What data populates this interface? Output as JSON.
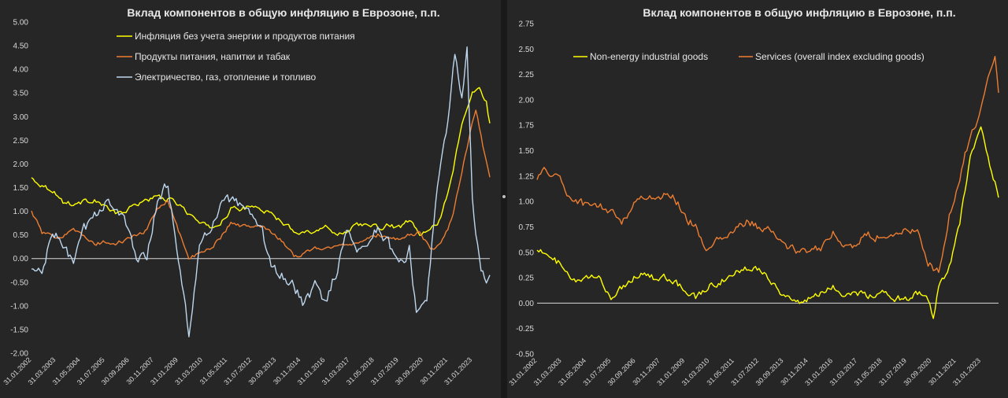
{
  "chart_data": [
    {
      "type": "line",
      "title": "Вклад компонентов в общую инфляцию в Еврозоне, п.п.",
      "xlabel": "",
      "ylabel": "",
      "ylim": [
        -2.0,
        5.0
      ],
      "ytick_labels": [
        "-2.00",
        "-1.50",
        "-1.00",
        "-0.50",
        "0.00",
        "0.50",
        "1.00",
        "1.50",
        "2.00",
        "2.50",
        "3.00",
        "3.50",
        "4.00",
        "4.50",
        "5.00"
      ],
      "x_tick_labels": [
        "31.01.2002",
        "31.03.2003",
        "31.05.2004",
        "31.07.2005",
        "30.09.2006",
        "30.11.2007",
        "31.01.2009",
        "31.03.2010",
        "31.05.2011",
        "31.07.2012",
        "30.09.2013",
        "30.11.2014",
        "31.01.2016",
        "31.03.2017",
        "31.05.2018",
        "31.07.2019",
        "30.09.2020",
        "30.11.2021",
        "31.01.2023"
      ],
      "x_start": "2002-01",
      "x_end": "2023-11",
      "legend_position": "top-left",
      "grid": false,
      "series": [
        {
          "name": "Инфляция без учета энергии и продуктов питания",
          "color": "#ffff00",
          "points": [
            [
              "2002-01",
              1.7
            ],
            [
              "2002-07",
              1.55
            ],
            [
              "2003-01",
              1.45
            ],
            [
              "2003-07",
              1.2
            ],
            [
              "2004-01",
              1.15
            ],
            [
              "2004-07",
              1.2
            ],
            [
              "2005-01",
              1.25
            ],
            [
              "2005-07",
              1.1
            ],
            [
              "2006-01",
              0.95
            ],
            [
              "2006-07",
              1.0
            ],
            [
              "2007-01",
              1.15
            ],
            [
              "2007-07",
              1.25
            ],
            [
              "2008-01",
              1.3
            ],
            [
              "2008-07",
              1.25
            ],
            [
              "2009-01",
              1.15
            ],
            [
              "2009-07",
              0.95
            ],
            [
              "2010-01",
              0.75
            ],
            [
              "2010-07",
              0.65
            ],
            [
              "2011-01",
              0.75
            ],
            [
              "2011-07",
              1.05
            ],
            [
              "2012-01",
              1.05
            ],
            [
              "2012-07",
              1.1
            ],
            [
              "2013-01",
              1.05
            ],
            [
              "2013-07",
              0.9
            ],
            [
              "2014-01",
              0.75
            ],
            [
              "2014-07",
              0.6
            ],
            [
              "2015-01",
              0.55
            ],
            [
              "2015-07",
              0.6
            ],
            [
              "2016-01",
              0.65
            ],
            [
              "2016-07",
              0.55
            ],
            [
              "2017-01",
              0.55
            ],
            [
              "2017-07",
              0.75
            ],
            [
              "2018-01",
              0.7
            ],
            [
              "2018-07",
              0.65
            ],
            [
              "2019-01",
              0.7
            ],
            [
              "2019-07",
              0.65
            ],
            [
              "2020-01",
              0.8
            ],
            [
              "2020-07",
              0.5
            ],
            [
              "2021-01",
              0.6
            ],
            [
              "2021-07",
              0.85
            ],
            [
              "2022-01",
              1.7
            ],
            [
              "2022-07",
              2.8
            ],
            [
              "2023-01",
              3.5
            ],
            [
              "2023-05",
              3.6
            ],
            [
              "2023-09",
              3.3
            ],
            [
              "2023-11",
              2.85
            ]
          ]
        },
        {
          "name": "Продукты питания, напитки и табак",
          "color": "#ed7d31",
          "points": [
            [
              "2002-01",
              1.0
            ],
            [
              "2002-07",
              0.55
            ],
            [
              "2003-01",
              0.45
            ],
            [
              "2003-07",
              0.5
            ],
            [
              "2004-01",
              0.65
            ],
            [
              "2004-07",
              0.45
            ],
            [
              "2005-01",
              0.3
            ],
            [
              "2005-07",
              0.35
            ],
            [
              "2006-01",
              0.3
            ],
            [
              "2006-07",
              0.4
            ],
            [
              "2007-01",
              0.5
            ],
            [
              "2007-07",
              0.6
            ],
            [
              "2008-01",
              1.05
            ],
            [
              "2008-07",
              1.25
            ],
            [
              "2009-01",
              0.6
            ],
            [
              "2009-07",
              0.0
            ],
            [
              "2010-01",
              0.1
            ],
            [
              "2010-07",
              0.2
            ],
            [
              "2011-01",
              0.45
            ],
            [
              "2011-07",
              0.75
            ],
            [
              "2012-01",
              0.7
            ],
            [
              "2012-07",
              0.65
            ],
            [
              "2013-01",
              0.7
            ],
            [
              "2013-07",
              0.55
            ],
            [
              "2014-01",
              0.35
            ],
            [
              "2014-07",
              0.05
            ],
            [
              "2015-01",
              0.1
            ],
            [
              "2015-07",
              0.25
            ],
            [
              "2016-01",
              0.2
            ],
            [
              "2016-07",
              0.25
            ],
            [
              "2017-01",
              0.3
            ],
            [
              "2017-07",
              0.35
            ],
            [
              "2018-01",
              0.4
            ],
            [
              "2018-07",
              0.5
            ],
            [
              "2019-01",
              0.45
            ],
            [
              "2019-07",
              0.4
            ],
            [
              "2020-01",
              0.5
            ],
            [
              "2020-07",
              0.55
            ],
            [
              "2021-01",
              0.2
            ],
            [
              "2021-07",
              0.3
            ],
            [
              "2022-01",
              0.8
            ],
            [
              "2022-07",
              1.8
            ],
            [
              "2023-01",
              2.9
            ],
            [
              "2023-03",
              3.15
            ],
            [
              "2023-07",
              2.4
            ],
            [
              "2023-11",
              1.75
            ]
          ]
        },
        {
          "name": "Электричество, газ, отопление и топливо",
          "color": "#bdd7ee",
          "points": [
            [
              "2002-01",
              -0.25
            ],
            [
              "2002-07",
              -0.3
            ],
            [
              "2003-01",
              0.55
            ],
            [
              "2003-07",
              0.3
            ],
            [
              "2004-01",
              -0.1
            ],
            [
              "2004-07",
              0.6
            ],
            [
              "2005-01",
              0.9
            ],
            [
              "2005-07",
              1.2
            ],
            [
              "2006-01",
              1.1
            ],
            [
              "2006-07",
              0.7
            ],
            [
              "2007-01",
              0.05
            ],
            [
              "2007-07",
              0.1
            ],
            [
              "2008-01",
              1.2
            ],
            [
              "2008-07",
              1.6
            ],
            [
              "2009-01",
              -0.1
            ],
            [
              "2009-07",
              -1.55
            ],
            [
              "2010-01",
              0.2
            ],
            [
              "2010-07",
              0.6
            ],
            [
              "2011-01",
              1.1
            ],
            [
              "2011-07",
              1.25
            ],
            [
              "2012-01",
              1.05
            ],
            [
              "2012-07",
              0.85
            ],
            [
              "2013-01",
              0.5
            ],
            [
              "2013-07",
              -0.2
            ],
            [
              "2014-01",
              -0.4
            ],
            [
              "2014-07",
              -0.6
            ],
            [
              "2015-01",
              -1.0
            ],
            [
              "2015-07",
              -0.55
            ],
            [
              "2016-01",
              -0.9
            ],
            [
              "2016-07",
              -0.3
            ],
            [
              "2017-01",
              0.55
            ],
            [
              "2017-07",
              0.25
            ],
            [
              "2018-01",
              0.3
            ],
            [
              "2018-07",
              0.65
            ],
            [
              "2019-01",
              0.35
            ],
            [
              "2019-07",
              -0.2
            ],
            [
              "2020-01",
              0.2
            ],
            [
              "2020-05",
              -1.2
            ],
            [
              "2020-11",
              -0.8
            ],
            [
              "2021-05",
              1.5
            ],
            [
              "2021-11",
              2.8
            ],
            [
              "2022-03",
              4.3
            ],
            [
              "2022-07",
              3.4
            ],
            [
              "2022-10",
              4.45
            ],
            [
              "2023-01",
              1.2
            ],
            [
              "2023-05",
              -0.1
            ],
            [
              "2023-09",
              -0.6
            ],
            [
              "2023-11",
              -0.4
            ]
          ]
        }
      ]
    },
    {
      "type": "line",
      "title": "Вклад компонентов в общую инфляцию в Еврозоне, п.п.",
      "xlabel": "",
      "ylabel": "",
      "ylim": [
        -0.5,
        2.75
      ],
      "ytick_labels": [
        "-0.50",
        "-0.25",
        "0.00",
        "0.25",
        "0.50",
        "0.75",
        "1.00",
        "1.25",
        "1.50",
        "1.75",
        "2.00",
        "2.25",
        "2.50",
        "2.75"
      ],
      "x_tick_labels": [
        "31.01.2002",
        "31.03.2003",
        "31.05.2004",
        "31.07.2005",
        "30.09.2006",
        "30.11.2007",
        "31.01.2009",
        "31.03.2010",
        "31.05.2011",
        "31.07.2012",
        "30.09.2013",
        "30.11.2014",
        "31.01.2016",
        "31.03.2017",
        "31.05.2018",
        "31.07.2019",
        "30.09.2020",
        "30.11.2021",
        "31.01.2023"
      ],
      "x_start": "2002-01",
      "x_end": "2023-11",
      "legend_position": "top-left",
      "grid": false,
      "series": [
        {
          "name": "Non-energy industrial goods",
          "color": "#ffff00",
          "points": [
            [
              "2002-01",
              0.55
            ],
            [
              "2002-07",
              0.45
            ],
            [
              "2003-01",
              0.4
            ],
            [
              "2003-07",
              0.25
            ],
            [
              "2004-01",
              0.2
            ],
            [
              "2004-07",
              0.25
            ],
            [
              "2005-01",
              0.25
            ],
            [
              "2005-07",
              0.05
            ],
            [
              "2006-01",
              0.15
            ],
            [
              "2006-07",
              0.25
            ],
            [
              "2007-01",
              0.3
            ],
            [
              "2007-07",
              0.25
            ],
            [
              "2008-01",
              0.25
            ],
            [
              "2008-07",
              0.2
            ],
            [
              "2009-01",
              0.15
            ],
            [
              "2009-07",
              0.05
            ],
            [
              "2010-01",
              0.15
            ],
            [
              "2010-07",
              0.2
            ],
            [
              "2011-01",
              0.25
            ],
            [
              "2011-07",
              0.3
            ],
            [
              "2012-01",
              0.35
            ],
            [
              "2012-07",
              0.35
            ],
            [
              "2013-01",
              0.25
            ],
            [
              "2013-07",
              0.1
            ],
            [
              "2014-01",
              0.05
            ],
            [
              "2014-07",
              0.0
            ],
            [
              "2015-01",
              0.05
            ],
            [
              "2015-07",
              0.1
            ],
            [
              "2016-01",
              0.15
            ],
            [
              "2016-07",
              0.1
            ],
            [
              "2017-01",
              0.1
            ],
            [
              "2017-07",
              0.1
            ],
            [
              "2018-01",
              0.05
            ],
            [
              "2018-07",
              0.1
            ],
            [
              "2019-01",
              0.05
            ],
            [
              "2019-07",
              0.05
            ],
            [
              "2020-01",
              0.1
            ],
            [
              "2020-07",
              0.05
            ],
            [
              "2020-10",
              -0.15
            ],
            [
              "2021-01",
              0.15
            ],
            [
              "2021-07",
              0.35
            ],
            [
              "2022-01",
              0.8
            ],
            [
              "2022-07",
              1.45
            ],
            [
              "2023-01",
              1.75
            ],
            [
              "2023-05",
              1.45
            ],
            [
              "2023-11",
              1.05
            ]
          ]
        },
        {
          "name": "Services (overall index excluding goods)",
          "color": "#ed7d31",
          "points": [
            [
              "2002-01",
              1.25
            ],
            [
              "2002-07",
              1.3
            ],
            [
              "2003-01",
              1.25
            ],
            [
              "2003-07",
              1.05
            ],
            [
              "2004-01",
              1.0
            ],
            [
              "2004-07",
              0.95
            ],
            [
              "2005-01",
              0.95
            ],
            [
              "2005-07",
              0.9
            ],
            [
              "2006-01",
              0.8
            ],
            [
              "2006-07",
              0.95
            ],
            [
              "2007-01",
              1.05
            ],
            [
              "2007-07",
              1.05
            ],
            [
              "2008-01",
              1.05
            ],
            [
              "2008-07",
              1.05
            ],
            [
              "2009-01",
              0.85
            ],
            [
              "2009-07",
              0.75
            ],
            [
              "2010-01",
              0.55
            ],
            [
              "2010-07",
              0.6
            ],
            [
              "2011-01",
              0.65
            ],
            [
              "2011-07",
              0.75
            ],
            [
              "2012-01",
              0.8
            ],
            [
              "2012-07",
              0.75
            ],
            [
              "2013-01",
              0.7
            ],
            [
              "2013-07",
              0.6
            ],
            [
              "2014-01",
              0.55
            ],
            [
              "2014-07",
              0.5
            ],
            [
              "2015-01",
              0.5
            ],
            [
              "2015-07",
              0.55
            ],
            [
              "2016-01",
              0.7
            ],
            [
              "2016-07",
              0.55
            ],
            [
              "2017-01",
              0.55
            ],
            [
              "2017-07",
              0.7
            ],
            [
              "2018-01",
              0.65
            ],
            [
              "2018-07",
              0.65
            ],
            [
              "2019-01",
              0.7
            ],
            [
              "2019-07",
              0.7
            ],
            [
              "2020-01",
              0.7
            ],
            [
              "2020-07",
              0.4
            ],
            [
              "2021-01",
              0.3
            ],
            [
              "2021-07",
              0.85
            ],
            [
              "2022-01",
              1.25
            ],
            [
              "2022-07",
              1.65
            ],
            [
              "2023-01",
              1.9
            ],
            [
              "2023-05",
              2.25
            ],
            [
              "2023-09",
              2.45
            ],
            [
              "2023-11",
              2.05
            ]
          ]
        }
      ]
    }
  ]
}
